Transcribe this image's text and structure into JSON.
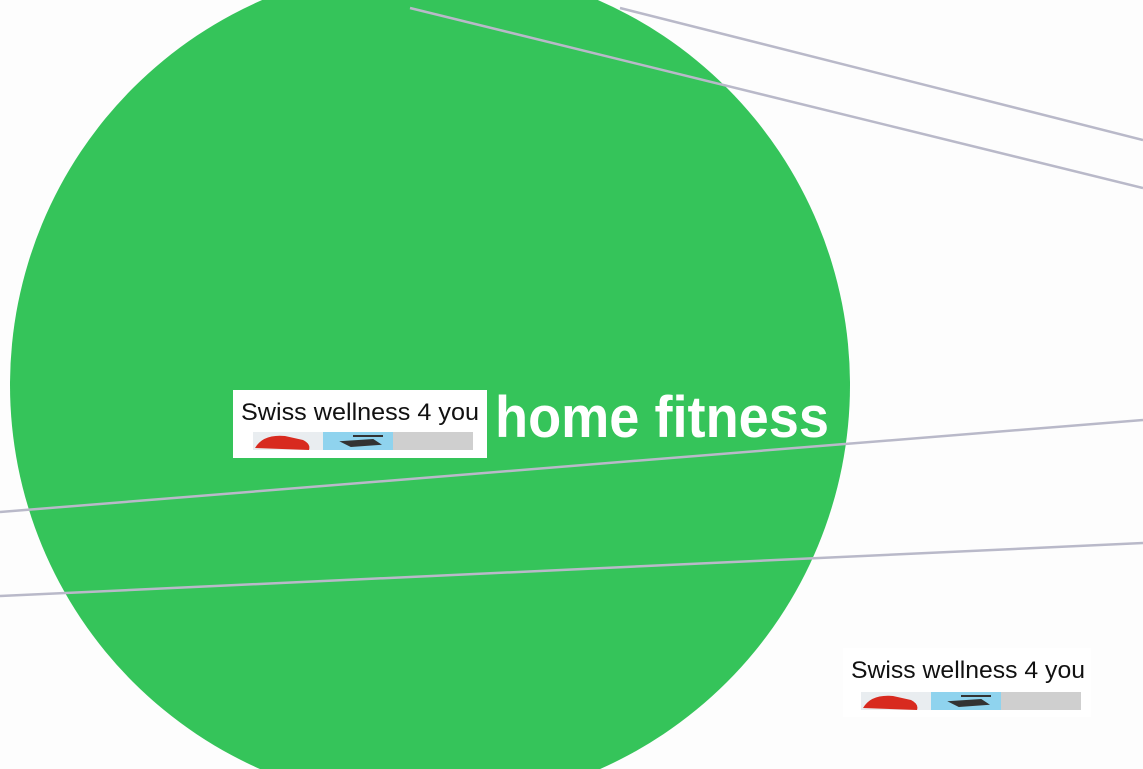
{
  "logos": [
    {
      "text": "Swiss wellness 4 you"
    },
    {
      "text": "Swiss wellness 4 you"
    }
  ],
  "headline": "home fitness"
}
